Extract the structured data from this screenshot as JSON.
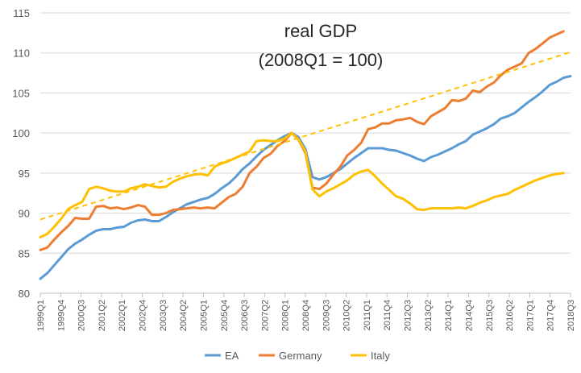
{
  "chart_data": {
    "type": "line",
    "title": "real GDP",
    "subtitle": "(2008Q1 = 100)",
    "xlabel": "",
    "ylabel": "",
    "ylim": [
      80,
      115
    ],
    "yticks": [
      80,
      85,
      90,
      95,
      100,
      105,
      110,
      115
    ],
    "grid": true,
    "legend_position": "bottom-center",
    "x_tick_labels": [
      "1999Q1",
      "1999Q4",
      "2000Q3",
      "2001Q2",
      "2002Q1",
      "2002Q4",
      "2003Q3",
      "2004Q2",
      "2005Q1",
      "2005Q4",
      "2006Q3",
      "2007Q2",
      "2008Q1",
      "2008Q4",
      "2009Q3",
      "2010Q2",
      "2011Q1",
      "2011Q4",
      "2012Q3",
      "2013Q2",
      "2014Q1",
      "2014Q4",
      "2015Q3",
      "2016Q2",
      "2017Q1",
      "2017Q4",
      "2018Q3"
    ],
    "series": [
      {
        "name": "EA",
        "color": "#5b9bd5",
        "values": [
          81.8,
          82.5,
          83.5,
          84.5,
          85.5,
          86.2,
          86.7,
          87.3,
          87.8,
          88.0,
          88.0,
          88.2,
          88.3,
          88.8,
          89.1,
          89.2,
          89.0,
          89.0,
          89.5,
          90.1,
          90.6,
          91.1,
          91.4,
          91.7,
          91.9,
          92.4,
          93.1,
          93.7,
          94.5,
          95.5,
          96.2,
          97.1,
          97.9,
          98.5,
          99.1,
          99.6,
          100.0,
          99.5,
          98.0,
          94.5,
          94.2,
          94.5,
          95.0,
          95.5,
          96.2,
          96.9,
          97.5,
          98.1,
          98.1,
          98.1,
          97.9,
          97.8,
          97.5,
          97.2,
          96.8,
          96.5,
          97.0,
          97.3,
          97.7,
          98.1,
          98.6,
          99.0,
          99.8,
          100.2,
          100.6,
          101.1,
          101.8,
          102.1,
          102.5,
          103.2,
          103.9,
          104.5,
          105.2,
          106.0,
          106.4,
          106.9,
          107.1
        ]
      },
      {
        "name": "Germany",
        "color": "#ed7d31",
        "values": [
          85.4,
          85.7,
          86.7,
          87.6,
          88.4,
          89.4,
          89.3,
          89.3,
          90.8,
          90.9,
          90.6,
          90.7,
          90.5,
          90.7,
          91.0,
          90.8,
          89.8,
          89.8,
          90.0,
          90.4,
          90.5,
          90.6,
          90.7,
          90.6,
          90.7,
          90.6,
          91.3,
          92.0,
          92.4,
          93.3,
          95.0,
          95.8,
          96.9,
          97.4,
          98.4,
          99.0,
          100.0,
          99.2,
          97.5,
          93.2,
          93.0,
          93.7,
          94.8,
          95.8,
          97.2,
          97.9,
          98.8,
          100.5,
          100.7,
          101.2,
          101.2,
          101.6,
          101.7,
          101.9,
          101.4,
          101.1,
          102.1,
          102.6,
          103.1,
          104.1,
          104.0,
          104.3,
          105.3,
          105.1,
          105.8,
          106.3,
          107.2,
          107.9,
          108.3,
          108.7,
          110.0,
          110.5,
          111.2,
          111.9,
          112.3,
          112.7
        ]
      },
      {
        "name": "Italy",
        "color": "#ffc000",
        "values": [
          87.0,
          87.4,
          88.3,
          89.3,
          90.5,
          91.0,
          91.4,
          93.0,
          93.3,
          93.1,
          92.8,
          92.7,
          92.7,
          93.1,
          93.3,
          93.6,
          93.4,
          93.2,
          93.3,
          93.9,
          94.3,
          94.6,
          94.8,
          94.9,
          94.7,
          95.8,
          96.2,
          96.5,
          96.9,
          97.3,
          97.7,
          99.0,
          99.1,
          99.0,
          99.0,
          99.3,
          100.0,
          99.2,
          97.7,
          93.0,
          92.1,
          92.7,
          93.1,
          93.6,
          94.1,
          94.8,
          95.2,
          95.4,
          94.6,
          93.7,
          92.9,
          92.1,
          91.8,
          91.2,
          90.5,
          90.4,
          90.6,
          90.6,
          90.6,
          90.6,
          90.7,
          90.6,
          90.9,
          91.3,
          91.6,
          92.0,
          92.2,
          92.4,
          92.9,
          93.3,
          93.7,
          94.1,
          94.4,
          94.7,
          94.9,
          95.0
        ]
      }
    ],
    "trend_line": {
      "name": "trend",
      "color": "#ffc000",
      "style": "dashed",
      "start": {
        "x": "1999Q1",
        "value": 89.2
      },
      "end": {
        "x": "2018Q3",
        "value": 110.1
      }
    }
  }
}
